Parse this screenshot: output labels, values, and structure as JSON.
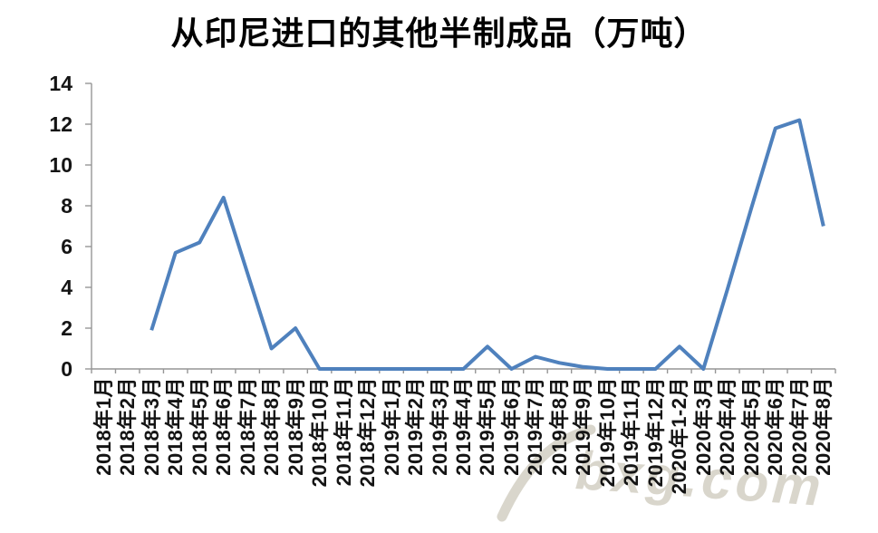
{
  "chart_data": {
    "type": "line",
    "title": "从印尼进口的其他半制成品（万吨）",
    "categories": [
      "2018年1月",
      "2018年2月",
      "2018年3月",
      "2018年4月",
      "2018年5月",
      "2018年6月",
      "2018年7月",
      "2018年8月",
      "2018年9月",
      "2018年10月",
      "2018年11月",
      "2018年12月",
      "2019年1月",
      "2019年2月",
      "2019年3月",
      "2019年4月",
      "2019年5月",
      "2019年6月",
      "2019年7月",
      "2019年8月",
      "2019年9月",
      "2019年10月",
      "2019年11月",
      "2019年12月",
      "2020年1-2月",
      "2020年3月",
      "2020年4月",
      "2020年5月",
      "2020年6月",
      "2020年7月",
      "2020年8月"
    ],
    "values": [
      null,
      null,
      1.9,
      5.7,
      6.2,
      8.4,
      4.7,
      1.0,
      2.0,
      0,
      0,
      0,
      0,
      0,
      0,
      0,
      1.1,
      0,
      0.6,
      0.3,
      0.1,
      0,
      0,
      0,
      1.1,
      0,
      3.9,
      7.9,
      11.8,
      12.2,
      7.0
    ],
    "xlabel": "",
    "ylabel": "",
    "ylim": [
      0,
      14
    ],
    "ytick_interval": 2,
    "ytick_labels": [
      "0",
      "2",
      "4",
      "6",
      "8",
      "10",
      "12",
      "14"
    ],
    "x_labels_rotation_deg": -90,
    "grid": false,
    "legend_position": "none",
    "line_color": "#4f81bd",
    "axis_color": "#969696",
    "label_color": "#141414"
  },
  "watermark": {
    "text": "bxg.com",
    "icon": "swoosh-icon",
    "color": "#bab4a3"
  }
}
